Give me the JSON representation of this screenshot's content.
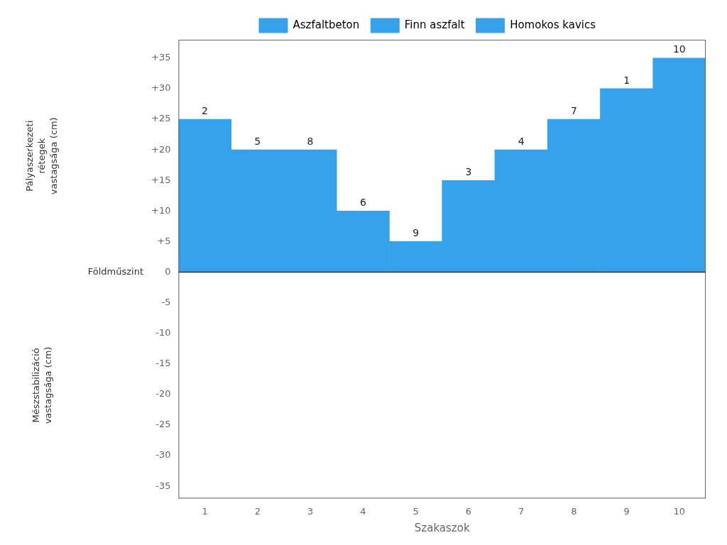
{
  "chart_data": {
    "type": "bar",
    "categories": [
      "1",
      "2",
      "3",
      "4",
      "5",
      "6",
      "7",
      "8",
      "9",
      "10"
    ],
    "values": [
      25,
      20,
      20,
      10,
      5,
      15,
      20,
      25,
      30,
      35
    ],
    "color": "#36a2eb",
    "xlabel": "Szakaszok",
    "ylabel_above_ground": "Pályaszerkezeti\nrétegek\nvastagsága (cm)",
    "ylabel_below_ground": "Mészstabilizáció\nvastagsága (cm)",
    "ground_line": {
      "y": 0,
      "label": "Földműszint"
    },
    "annotations": [
      {
        "x": "1",
        "y": 25,
        "text": "2"
      },
      {
        "x": "2",
        "y": 20,
        "text": "5"
      },
      {
        "x": "3",
        "y": 20,
        "text": "8"
      },
      {
        "x": "4",
        "y": 10,
        "text": "6"
      },
      {
        "x": "5",
        "y": 5,
        "text": "9"
      },
      {
        "x": "6",
        "y": 15,
        "text": "3"
      },
      {
        "x": "7",
        "y": 20,
        "text": "4"
      },
      {
        "x": "8",
        "y": 25,
        "text": "7"
      },
      {
        "x": "9",
        "y": 30,
        "text": "1"
      },
      {
        "x": "10",
        "y": 35,
        "text": "10"
      }
    ],
    "legend_entries": [
      "Aszfaltbeton",
      "Finn aszfalt",
      "Homokos kavics"
    ],
    "legend": "top",
    "ylim": [
      -37,
      38
    ],
    "yticks": [
      -35,
      -30,
      -25,
      -20,
      -15,
      -10,
      -5,
      0,
      {
        "value": 5,
        "label": "+5"
      },
      {
        "value": 10,
        "label": "+10"
      },
      {
        "value": 15,
        "label": "+15"
      },
      {
        "value": 20,
        "label": "+20"
      },
      {
        "value": 25,
        "label": "+25"
      },
      {
        "value": 30,
        "label": "+30"
      },
      {
        "value": 35,
        "label": "+35"
      }
    ],
    "grid": false
  }
}
